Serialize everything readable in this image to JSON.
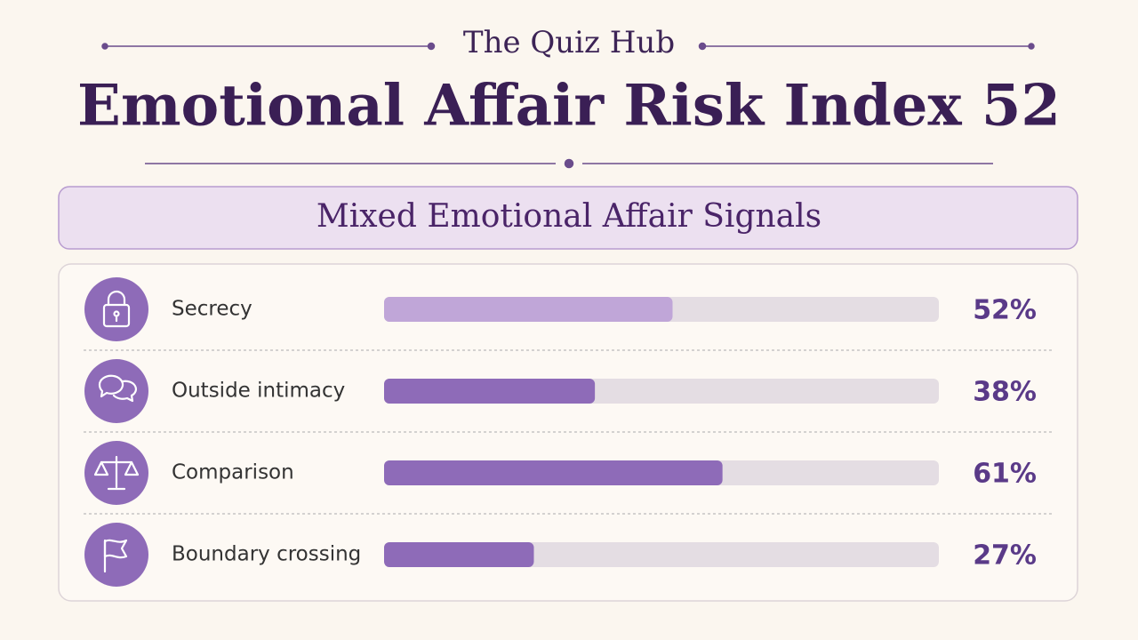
{
  "header": "The Quiz Hub",
  "chart_data": {
    "type": "bar",
    "orientation": "horizontal",
    "title": "Emotional Affair Risk Index 52",
    "subtitle": "Mixed Emotional Affair Signals",
    "categories": [
      "Secrecy",
      "Outside intimacy",
      "Comparison",
      "Boundary crossing"
    ],
    "values": [
      52,
      38,
      61,
      27
    ],
    "value_labels": [
      "52%",
      "38%",
      "61%",
      "27%"
    ],
    "colors": [
      "#c0a6d8",
      "#8e6bb8",
      "#8e6bb8",
      "#8e6bb8"
    ],
    "xlim": [
      0,
      100
    ]
  }
}
